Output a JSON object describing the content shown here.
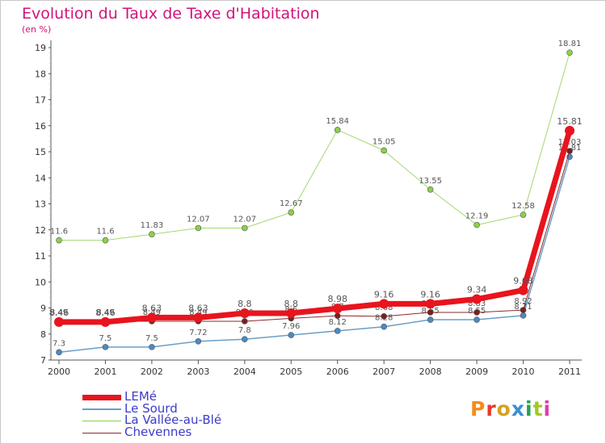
{
  "title": "Evolution du Taux de Taxe d'Habitation",
  "unit_label": "(en %)",
  "logo": {
    "text": "Proxiti",
    "colors": [
      "#f28c1c",
      "#e63a2c",
      "#d6a21e",
      "#3a8fd4",
      "#2aa14a",
      "#a2c928",
      "#e03cb0"
    ]
  },
  "chart_data": {
    "type": "line",
    "x": [
      "2000",
      "2001",
      "2002",
      "2003",
      "2004",
      "2005",
      "2006",
      "2007",
      "2008",
      "2009",
      "2010",
      "2011"
    ],
    "ylim": [
      7,
      19
    ],
    "yticks": [
      "7",
      "8",
      "9",
      "10",
      "11",
      "12",
      "13",
      "14",
      "15",
      "16",
      "17",
      "18",
      "19"
    ],
    "grid": false,
    "series": [
      {
        "name": "LEMé",
        "color": "#e8141e",
        "values": [
          8.46,
          8.46,
          8.63,
          8.63,
          8.8,
          8.8,
          8.98,
          9.16,
          9.16,
          9.34,
          9.68,
          15.81
        ],
        "labels": [
          "8.46",
          "8.46",
          "8.63",
          "8.63",
          "8.8",
          "8.8",
          "8.98",
          "9.16",
          "9.16",
          "9.34",
          "9.68",
          "15.81"
        ]
      },
      {
        "name": "Le Sourd",
        "color": "#6a9ec8",
        "values": [
          7.3,
          7.5,
          7.5,
          7.72,
          7.8,
          7.96,
          8.12,
          8.28,
          8.55,
          8.55,
          8.71,
          14.81
        ],
        "labels": [
          "7.3",
          "7.5",
          "7.5",
          "7.72",
          "7.8",
          "7.96",
          "8.12",
          "8.28",
          "8.55",
          "8.55",
          "8.71",
          "14.81"
        ]
      },
      {
        "name": "La Vallée-au-Blé",
        "color": "#8cd04a",
        "values": [
          11.6,
          11.6,
          11.83,
          12.07,
          12.07,
          12.67,
          15.84,
          15.05,
          13.55,
          12.19,
          12.58,
          18.81
        ],
        "labels": [
          "11.6",
          "11.6",
          "11.83",
          "12.07",
          "12.07",
          "12.67",
          "15.84",
          "15.05",
          "13.55",
          "12.19",
          "12.58",
          "18.81"
        ]
      },
      {
        "name": "Chevennes",
        "color": "#8b2a2a",
        "values": [
          8.49,
          8.49,
          8.49,
          8.49,
          8.49,
          8.6,
          8.7,
          8.68,
          8.83,
          8.83,
          8.92,
          15.03
        ],
        "labels": [
          "8.49",
          "8.49",
          "8.49",
          "8.49",
          "8.49",
          "8.6",
          "8.7",
          "8.68",
          "8.83",
          "8.83",
          "8.92",
          "15.03"
        ]
      }
    ]
  }
}
